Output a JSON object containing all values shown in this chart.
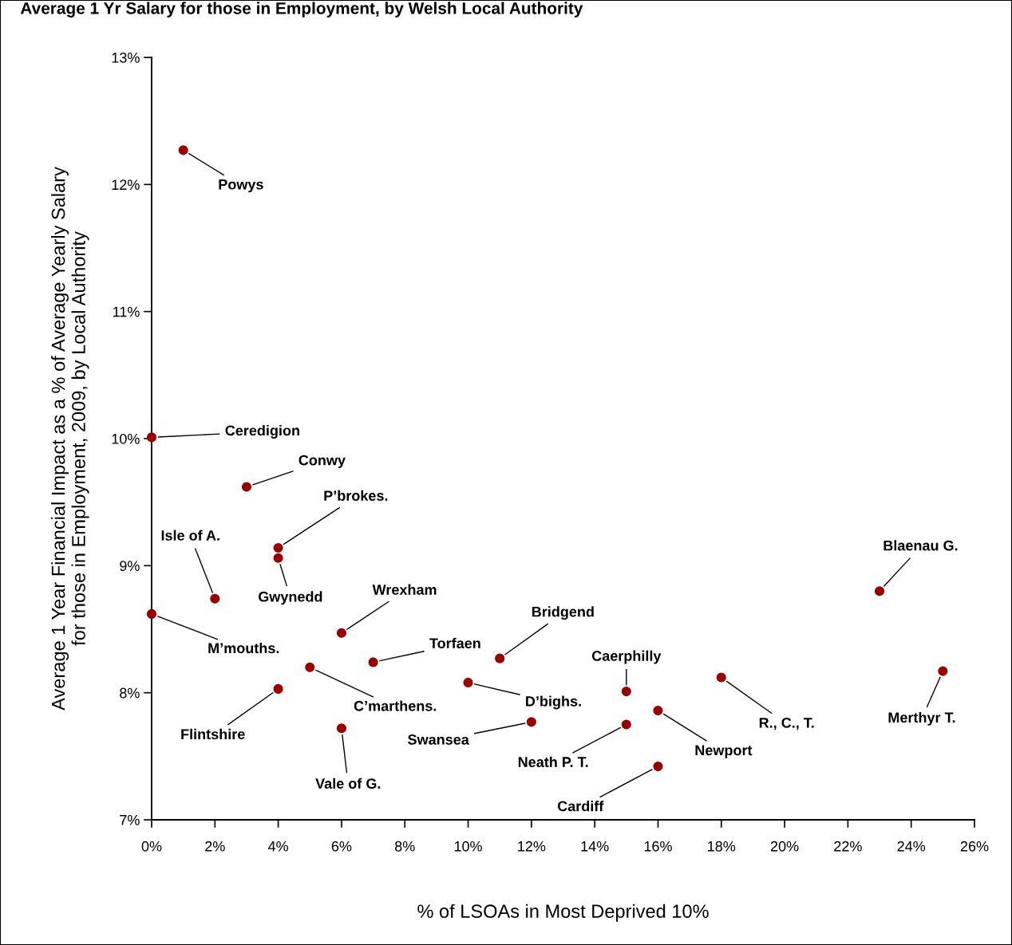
{
  "chart_data": {
    "type": "scatter",
    "title": "Average 1 Yr Salary for those in Employment, by Welsh Local Authority",
    "xlabel": "% of LSOAs in Most Deprived 10%",
    "ylabel": "Average 1 Year Financial Impact as a % of Average Yearly Salary\nfor those in Employment, 2009, by Local Authority",
    "series": [
      {
        "color": "#990000",
        "x": [
          1,
          0,
          3,
          4,
          4,
          2,
          0,
          6,
          7,
          11,
          5,
          10,
          15,
          4,
          18,
          25,
          23,
          16,
          12,
          15,
          6,
          16
        ],
        "values": [
          12.27,
          10.01,
          9.62,
          9.14,
          9.06,
          8.74,
          8.62,
          8.47,
          8.24,
          8.27,
          8.2,
          8.08,
          8.01,
          8.03,
          8.12,
          8.17,
          8.8,
          7.86,
          7.77,
          7.75,
          7.72,
          7.42
        ]
      }
    ],
    "annotations": [
      {
        "text": "Powys",
        "x": 1,
        "y": 12.27
      },
      {
        "text": "Ceredigion",
        "x": 0,
        "y": 10.01
      },
      {
        "text": "Conwy",
        "x": 3,
        "y": 9.62
      },
      {
        "text": "P’brokes.",
        "x": 4,
        "y": 9.14
      },
      {
        "text": "Gwynedd",
        "x": 4,
        "y": 9.06
      },
      {
        "text": "Isle of A.",
        "x": 2,
        "y": 8.74
      },
      {
        "text": "M’mouths.",
        "x": 0,
        "y": 8.62
      },
      {
        "text": "Wrexham",
        "x": 6,
        "y": 8.47
      },
      {
        "text": "Torfaen",
        "x": 7,
        "y": 8.24
      },
      {
        "text": "Bridgend",
        "x": 11,
        "y": 8.27
      },
      {
        "text": "C’marthens.",
        "x": 5,
        "y": 8.2
      },
      {
        "text": "D’bighs.",
        "x": 10,
        "y": 8.08
      },
      {
        "text": "Caerphilly",
        "x": 15,
        "y": 8.01
      },
      {
        "text": "Flintshire",
        "x": 4,
        "y": 8.03
      },
      {
        "text": "R., C., T.",
        "x": 18,
        "y": 8.12
      },
      {
        "text": "Merthyr T.",
        "x": 25,
        "y": 8.17
      },
      {
        "text": "Blaenau G.",
        "x": 23,
        "y": 8.8
      },
      {
        "text": "Newport",
        "x": 16,
        "y": 7.86
      },
      {
        "text": "Swansea",
        "x": 12,
        "y": 7.77
      },
      {
        "text": "Neath P. T.",
        "x": 15,
        "y": 7.75
      },
      {
        "text": "Vale of G.",
        "x": 6,
        "y": 7.72
      },
      {
        "text": "Cardiff",
        "x": 16,
        "y": 7.42
      }
    ],
    "xlim": [
      0,
      26
    ],
    "xticks": [
      {
        "value": 0,
        "label": "0%"
      },
      {
        "value": 2,
        "label": "2%"
      },
      {
        "value": 4,
        "label": "4%"
      },
      {
        "value": 6,
        "label": "6%"
      },
      {
        "value": 8,
        "label": "8%"
      },
      {
        "value": 10,
        "label": "10%"
      },
      {
        "value": 12,
        "label": "12%"
      },
      {
        "value": 14,
        "label": "14%"
      },
      {
        "value": 16,
        "label": "16%"
      },
      {
        "value": 18,
        "label": "18%"
      },
      {
        "value": 20,
        "label": "20%"
      },
      {
        "value": 22,
        "label": "22%"
      },
      {
        "value": 24,
        "label": "24%"
      },
      {
        "value": 26,
        "label": "26%"
      }
    ],
    "ylim": [
      7,
      13
    ],
    "yticks": [
      {
        "value": 7,
        "label": "7%"
      },
      {
        "value": 8,
        "label": "8%"
      },
      {
        "value": 9,
        "label": "9%"
      },
      {
        "value": 10,
        "label": "10%"
      },
      {
        "value": 11,
        "label": "11%"
      },
      {
        "value": 12,
        "label": "12%"
      },
      {
        "value": 13,
        "label": "13%"
      }
    ],
    "grid": false,
    "legend": false,
    "marker": "circle"
  }
}
